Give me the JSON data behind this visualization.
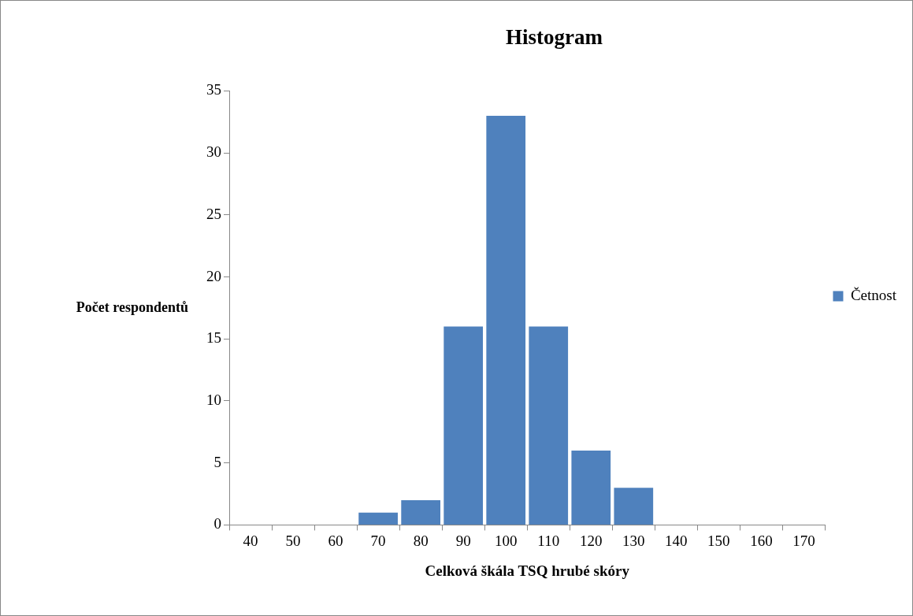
{
  "chart_data": {
    "type": "bar",
    "title": "Histogram",
    "xlabel": "Celková škála TSQ hrubé skóry",
    "ylabel": "Počet respondentů",
    "categories": [
      "40",
      "50",
      "60",
      "70",
      "80",
      "90",
      "100",
      "110",
      "120",
      "130",
      "140",
      "150",
      "160",
      "170"
    ],
    "series": [
      {
        "name": "Četnost",
        "color": "#4f81bd",
        "values": [
          0,
          0,
          0,
          1,
          2,
          16,
          33,
          16,
          6,
          3,
          0,
          0,
          0,
          0
        ]
      }
    ],
    "ylim": [
      0,
      35
    ],
    "yticks": [
      0,
      5,
      10,
      15,
      20,
      25,
      30,
      35
    ],
    "grid": false,
    "legend": "right"
  }
}
